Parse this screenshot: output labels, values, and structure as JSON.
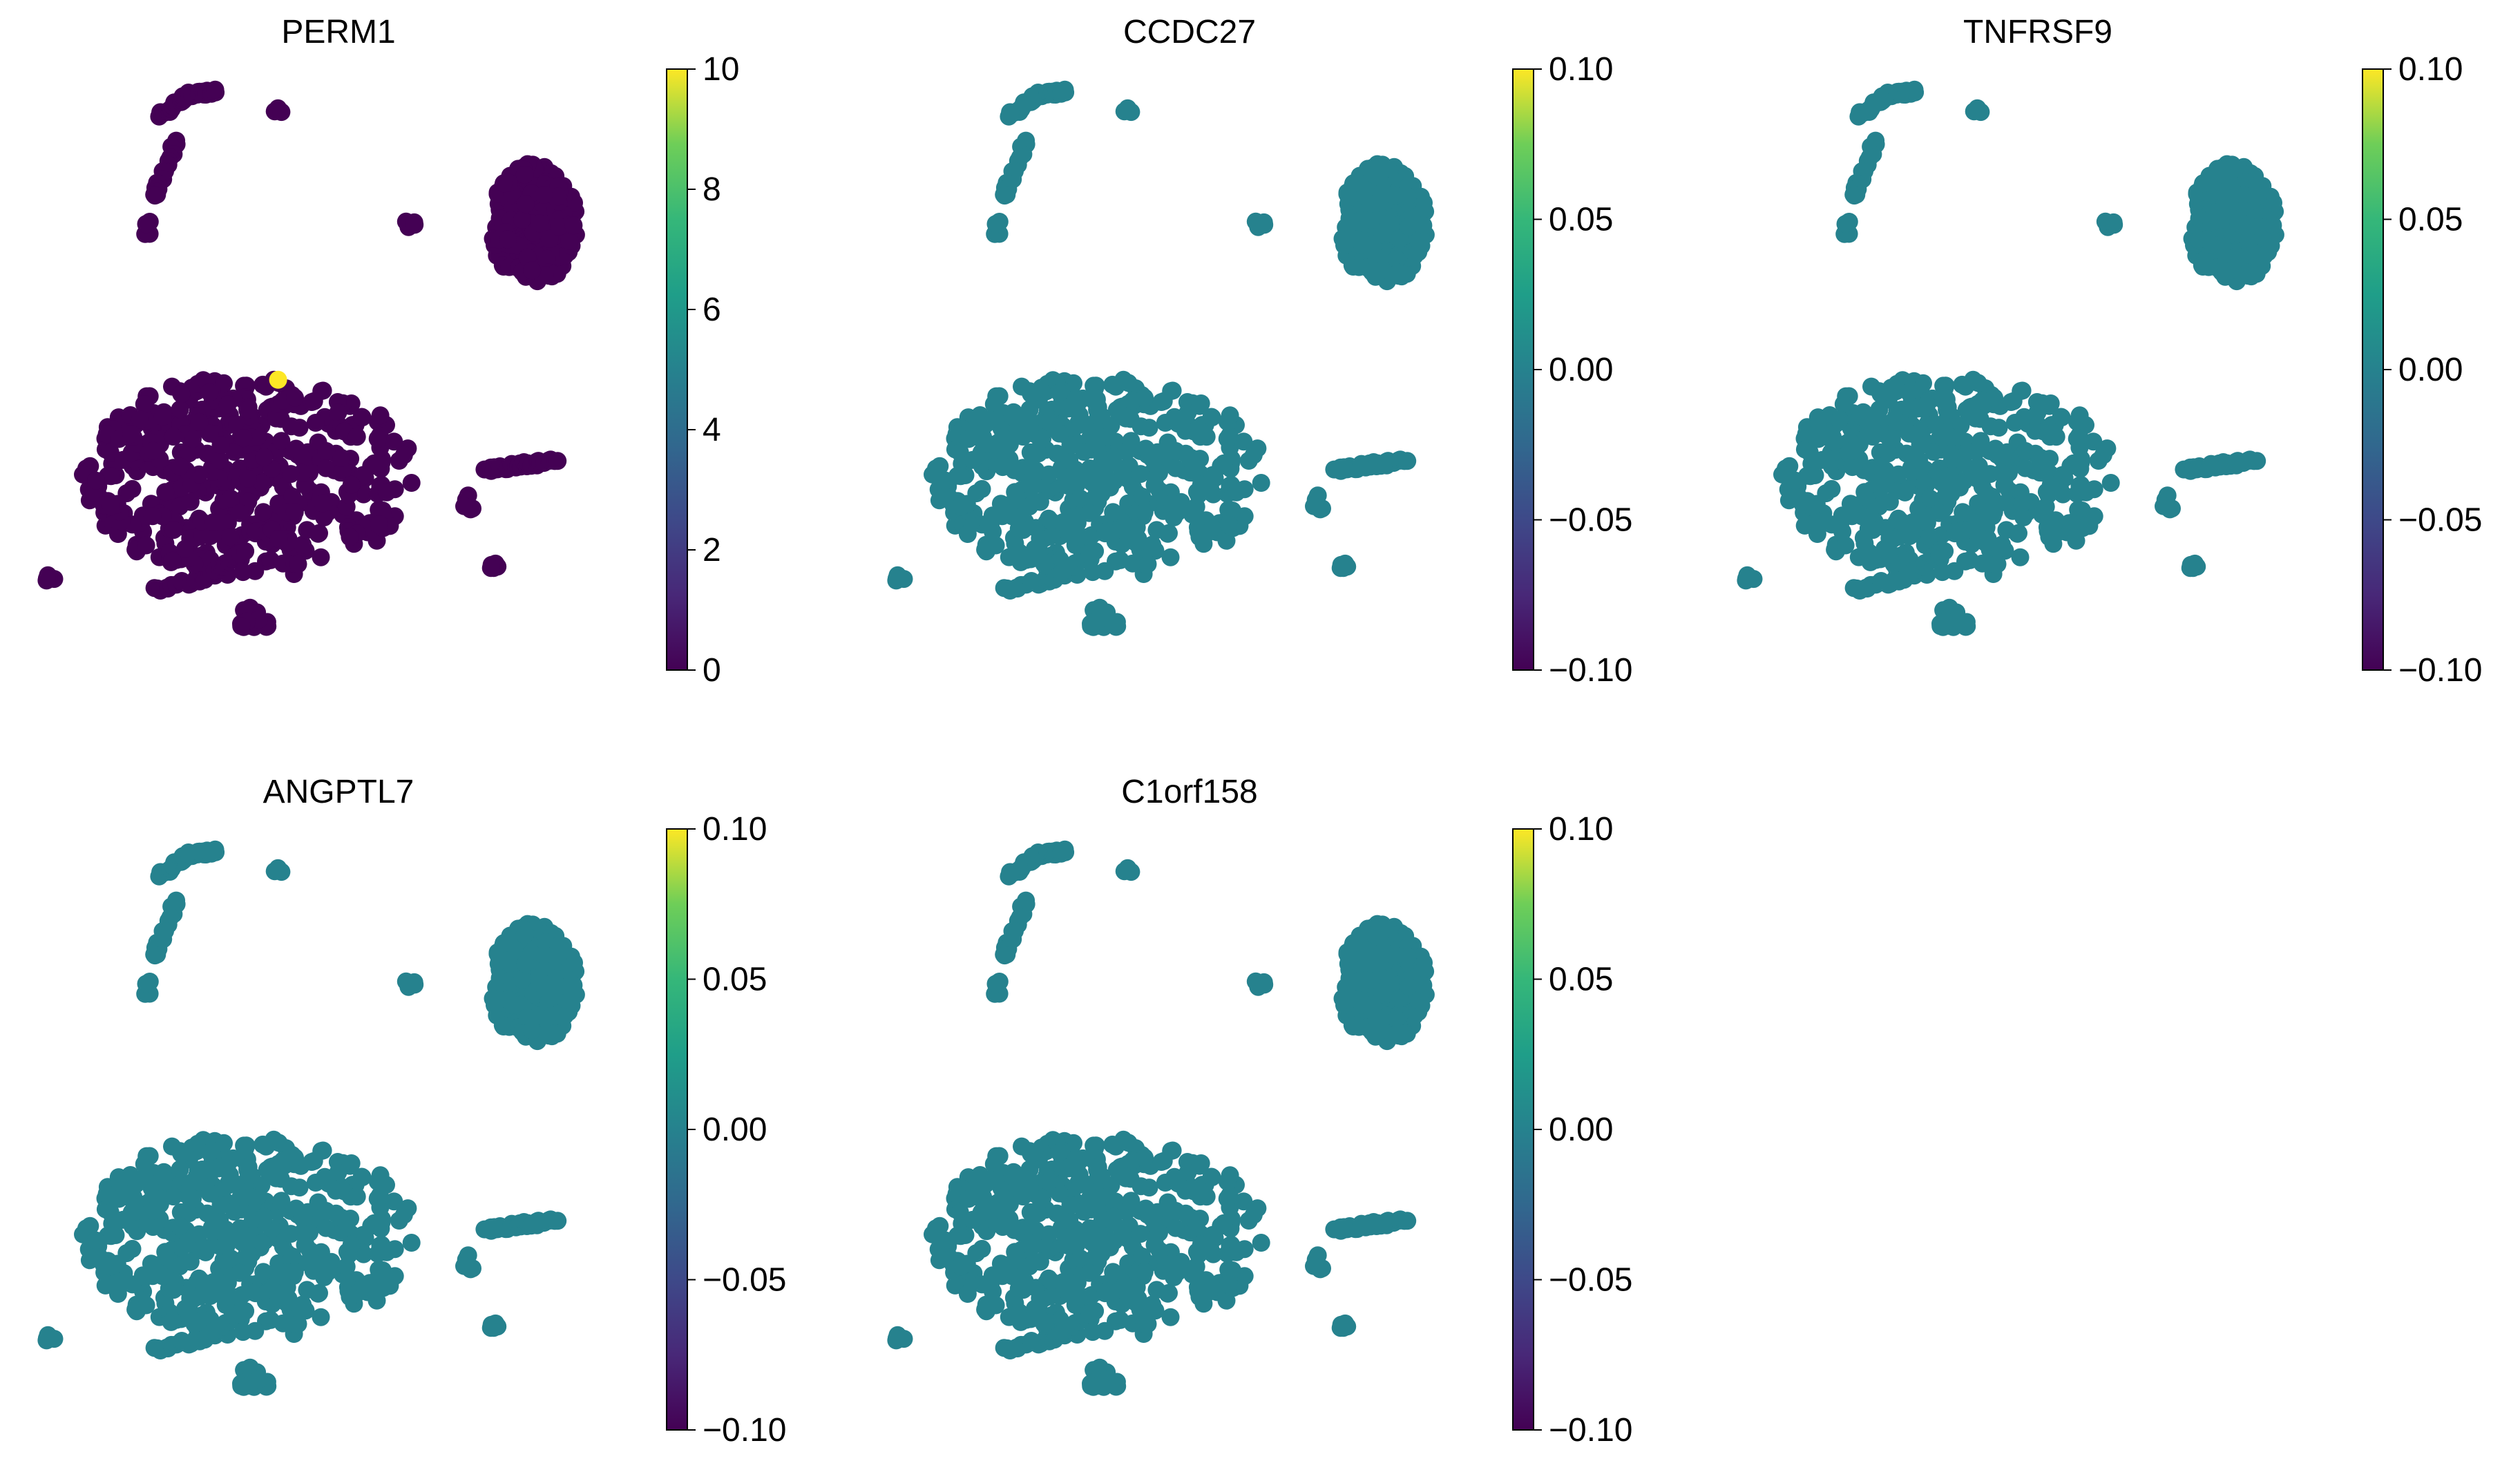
{
  "chart_data": [
    {
      "type": "scatter",
      "title": "PERM1",
      "colormap": "viridis",
      "colorbar": {
        "min": 0,
        "max": 10,
        "ticks": [
          "0",
          "2",
          "4",
          "6",
          "8",
          "10"
        ]
      },
      "point_value": 0,
      "highlight_points": [
        {
          "x": 4.1,
          "y": 4.6,
          "value": 10
        }
      ],
      "grid": false,
      "axes_visible": false
    },
    {
      "type": "scatter",
      "title": "CCDC27",
      "colormap": "viridis",
      "colorbar": {
        "min": -0.1,
        "max": 0.1,
        "ticks": [
          "−0.10",
          "−0.05",
          "0.00",
          "0.05",
          "0.10"
        ]
      },
      "point_value": 0.0,
      "highlight_points": [],
      "grid": false,
      "axes_visible": false
    },
    {
      "type": "scatter",
      "title": "TNFRSF9",
      "colormap": "viridis",
      "colorbar": {
        "min": -0.1,
        "max": 0.1,
        "ticks": [
          "−0.10",
          "−0.05",
          "0.00",
          "0.05",
          "0.10"
        ]
      },
      "point_value": 0.0,
      "highlight_points": [],
      "grid": false,
      "axes_visible": false
    },
    {
      "type": "scatter",
      "title": "ANGPTL7",
      "colormap": "viridis",
      "colorbar": {
        "min": -0.1,
        "max": 0.1,
        "ticks": [
          "−0.10",
          "−0.05",
          "0.00",
          "0.05",
          "0.10"
        ]
      },
      "point_value": 0.0,
      "highlight_points": [],
      "grid": false,
      "axes_visible": false
    },
    {
      "type": "scatter",
      "title": "C1orf158",
      "colormap": "viridis",
      "colorbar": {
        "min": -0.1,
        "max": 0.1,
        "ticks": [
          "−0.10",
          "−0.05",
          "0.00",
          "0.05",
          "0.10"
        ]
      },
      "point_value": 0.0,
      "highlight_points": [],
      "grid": false,
      "axes_visible": false
    }
  ],
  "embedding": {
    "note_clusters": [
      {
        "cx": 2.9,
        "cy": 9.3,
        "n": 8
      },
      {
        "cx": 2.1,
        "cy": 8.0,
        "n": 10
      },
      {
        "cx": 1.6,
        "cy": 7.2,
        "n": 2
      },
      {
        "cx": 1.9,
        "cy": 8.4,
        "n": 3
      },
      {
        "cx": 4.4,
        "cy": 9.0,
        "n": 3
      },
      {
        "cx": 6.5,
        "cy": 7.0,
        "n": 2
      }
    ],
    "colors": {
      "viridis_min": "#440154",
      "viridis_mid": "#21918c",
      "viridis_max": "#fde725"
    }
  }
}
